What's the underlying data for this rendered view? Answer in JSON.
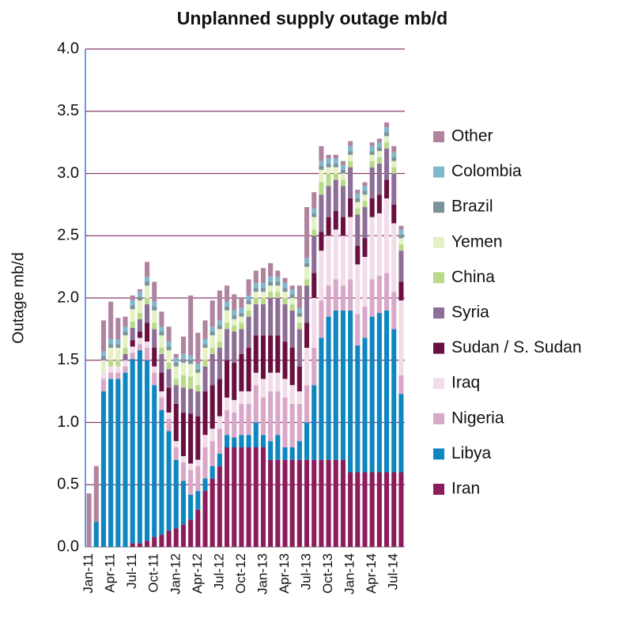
{
  "chart_data": {
    "type": "stacked_bar",
    "title": "Unplanned supply outage mb/d",
    "y_label": "Outage mb/d",
    "categories": [
      "Jan-11",
      null,
      null,
      "Apr-11",
      null,
      null,
      "Jul-11",
      null,
      null,
      "Oct-11",
      null,
      null,
      "Jan-12",
      null,
      null,
      "Apr-12",
      null,
      null,
      "Jul-12",
      null,
      null,
      "Oct-12",
      null,
      null,
      "Jan-13",
      null,
      null,
      "Apr-13",
      null,
      null,
      "Jul-13",
      null,
      null,
      "Oct-13",
      null,
      null,
      "Jan-14",
      null,
      null,
      "Apr-14",
      null,
      null,
      "Jul-14",
      null
    ],
    "ylim": [
      0,
      4
    ],
    "yticks": [
      {
        "value": 0,
        "label": "0.0"
      },
      0.5,
      {
        "value": 1,
        "label": "1.0"
      },
      1.5,
      {
        "value": 2,
        "label": "2.0"
      },
      2.5,
      {
        "value": 3,
        "label": "3.0"
      },
      3.5,
      {
        "value": 4,
        "label": "4.0"
      }
    ],
    "grid": true,
    "legend": "right",
    "series": [
      {
        "name": "Iran",
        "color": "#8c1c5c",
        "values": [
          0,
          0,
          0,
          0,
          0,
          0,
          0.03,
          0.03,
          0.05,
          0.08,
          0.1,
          0.13,
          0.15,
          0.18,
          0.22,
          0.3,
          0.45,
          0.55,
          0.65,
          0.8,
          0.8,
          0.8,
          0.8,
          0.8,
          0.8,
          0.7,
          0.7,
          0.7,
          0.7,
          0.7,
          0.7,
          0.7,
          0.7,
          0.7,
          0.7,
          0.7,
          0.6,
          0.6,
          0.6,
          0.6,
          0.6,
          0.6,
          0.6,
          0.6
        ]
      },
      {
        "name": "Libya",
        "color": "#0e86c0",
        "values": [
          0,
          0.2,
          1.25,
          1.35,
          1.35,
          1.4,
          1.48,
          1.55,
          1.45,
          1.22,
          1.0,
          0.8,
          0.55,
          0.35,
          0.2,
          0.15,
          0.1,
          0.1,
          0.1,
          0.1,
          0.08,
          0.1,
          0.1,
          0.2,
          0.1,
          0.15,
          0.2,
          0.1,
          0.1,
          0.15,
          0.3,
          0.6,
          0.98,
          1.15,
          1.2,
          1.2,
          1.3,
          1.02,
          1.08,
          1.25,
          1.28,
          1.3,
          1.15,
          0.63
        ]
      },
      {
        "name": "Nigeria",
        "color": "#d9a8c9",
        "values": [
          0,
          0,
          0.1,
          0.05,
          0.05,
          0.05,
          0.05,
          0.05,
          0.1,
          0.1,
          0.1,
          0.1,
          0.1,
          0.15,
          0.2,
          0.2,
          0.25,
          0.2,
          0.2,
          0.2,
          0.2,
          0.25,
          0.25,
          0.3,
          0.3,
          0.4,
          0.35,
          0.4,
          0.35,
          0.3,
          0.3,
          0.3,
          0.3,
          0.25,
          0.25,
          0.2,
          0.25,
          0.25,
          0.25,
          0.3,
          0.3,
          0.3,
          0.3,
          0.15
        ]
      },
      {
        "name": "Iraq",
        "color": "#f3dcea",
        "values": [
          0,
          0,
          0.05,
          0.05,
          0.05,
          0.05,
          0.05,
          0.05,
          0.05,
          0.05,
          0.05,
          0.05,
          0.05,
          0.05,
          0.05,
          0.05,
          0.1,
          0.1,
          0.1,
          0.1,
          0.1,
          0.1,
          0.1,
          0.1,
          0.15,
          0.15,
          0.15,
          0.15,
          0.15,
          0.1,
          0.3,
          0.4,
          0.4,
          0.4,
          0.4,
          0.4,
          0.5,
          0.4,
          0.4,
          0.5,
          0.5,
          0.6,
          0.55,
          0.6
        ]
      },
      {
        "name": "Sudan / S. Sudan",
        "color": "#6a1040",
        "values": [
          0,
          0,
          0,
          0,
          0,
          0,
          0.05,
          0.05,
          0.15,
          0.15,
          0.15,
          0.2,
          0.3,
          0.35,
          0.4,
          0.35,
          0.35,
          0.35,
          0.3,
          0.3,
          0.3,
          0.3,
          0.35,
          0.3,
          0.35,
          0.3,
          0.3,
          0.3,
          0.3,
          0.2,
          0.2,
          0.2,
          0.15,
          0.15,
          0.15,
          0.15,
          0.15,
          0.15,
          0.15,
          0.15,
          0.15,
          0.15,
          0.15,
          0.15
        ]
      },
      {
        "name": "Syria",
        "color": "#8d6e97",
        "values": [
          0,
          0,
          0,
          0,
          0,
          0.05,
          0.1,
          0.1,
          0.15,
          0.15,
          0.15,
          0.15,
          0.15,
          0.2,
          0.2,
          0.2,
          0.2,
          0.25,
          0.25,
          0.25,
          0.25,
          0.2,
          0.25,
          0.25,
          0.25,
          0.3,
          0.3,
          0.3,
          0.3,
          0.3,
          0.3,
          0.3,
          0.3,
          0.25,
          0.25,
          0.25,
          0.25,
          0.25,
          0.25,
          0.25,
          0.25,
          0.25,
          0.25,
          0.25
        ]
      },
      {
        "name": "China",
        "color": "#b8da8a",
        "values": [
          0,
          0,
          0,
          0.05,
          0.05,
          0.05,
          0.05,
          0.05,
          0.05,
          0.05,
          0.05,
          0.05,
          0.05,
          0.1,
          0.1,
          0.05,
          0.05,
          0.05,
          0.05,
          0.05,
          0.05,
          0.05,
          0.05,
          0.05,
          0.05,
          0.05,
          0.05,
          0.05,
          0.05,
          0.05,
          0.05,
          0.05,
          0.1,
          0.1,
          0.05,
          0.05,
          0.05,
          0.05,
          0.05,
          0.05,
          0.05,
          0.05,
          0.05,
          0.05
        ]
      },
      {
        "name": "Yemen",
        "color": "#e4f1c2",
        "values": [
          0,
          0,
          0.1,
          0.1,
          0.1,
          0.1,
          0.1,
          0.1,
          0.1,
          0.1,
          0.1,
          0.1,
          0.1,
          0.1,
          0.1,
          0.1,
          0.1,
          0.1,
          0.1,
          0.1,
          0.05,
          0.05,
          0.05,
          0.05,
          0.05,
          0.05,
          0.05,
          0.05,
          0.05,
          0.05,
          0.1,
          0.1,
          0.1,
          0.05,
          0.05,
          0.05,
          0.05,
          0.05,
          0.05,
          0.05,
          0.05,
          0.05,
          0.05,
          0.05
        ]
      },
      {
        "name": "Brazil",
        "color": "#7a9399",
        "values": [
          0,
          0,
          0.03,
          0.03,
          0.03,
          0.03,
          0.03,
          0.03,
          0.03,
          0.03,
          0.03,
          0.03,
          0.03,
          0.03,
          0.03,
          0.03,
          0.03,
          0.03,
          0.03,
          0.03,
          0.03,
          0.03,
          0.03,
          0.03,
          0.03,
          0.03,
          0.03,
          0.03,
          0.03,
          0.03,
          0.03,
          0.03,
          0.03,
          0.03,
          0.03,
          0.03,
          0.03,
          0.03,
          0.03,
          0.03,
          0.03,
          0.03,
          0.03,
          0.03
        ]
      },
      {
        "name": "Colombia",
        "color": "#7fb9cd",
        "values": [
          0,
          0,
          0.04,
          0.04,
          0.04,
          0.04,
          0.04,
          0.04,
          0.04,
          0.04,
          0.04,
          0.04,
          0.04,
          0.04,
          0.04,
          0.04,
          0.04,
          0.04,
          0.04,
          0.04,
          0.04,
          0.04,
          0.04,
          0.04,
          0.04,
          0.04,
          0.04,
          0.04,
          0.04,
          0.04,
          0.04,
          0.04,
          0.04,
          0.04,
          0.04,
          0.04,
          0.04,
          0.04,
          0.04,
          0.04,
          0.04,
          0.04,
          0.04,
          0.04
        ]
      },
      {
        "name": "Other",
        "color": "#b0849f",
        "values": [
          0.43,
          0.45,
          0.25,
          0.3,
          0.17,
          0.08,
          0.04,
          0.02,
          0.12,
          0.16,
          0.12,
          0.12,
          0.03,
          0.14,
          0.48,
          0.25,
          0.15,
          0.21,
          0.24,
          0.13,
          0.13,
          0.08,
          0.13,
          0.1,
          0.12,
          0.11,
          0.05,
          0.04,
          0.03,
          0.18,
          0.41,
          0.13,
          0.12,
          0.03,
          0.03,
          0.03,
          0.04,
          0.03,
          0.03,
          0.03,
          0.03,
          0.04,
          0.05,
          0.03
        ]
      }
    ]
  }
}
